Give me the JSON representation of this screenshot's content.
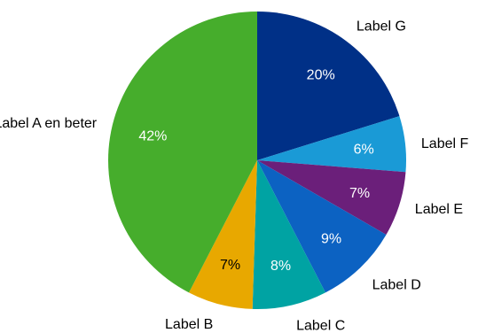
{
  "chart_data": {
    "type": "pie",
    "title": "",
    "legend": "none",
    "grid": false,
    "slices": [
      {
        "label": "Label G",
        "value": 20,
        "display": "20%",
        "color": "#003087",
        "text_color": "#ffffff"
      },
      {
        "label": "Label F",
        "value": 6,
        "display": "6%",
        "color": "#1a9ad6",
        "text_color": "#ffffff"
      },
      {
        "label": "Label E",
        "value": 7,
        "display": "7%",
        "color": "#6b1f7a",
        "text_color": "#ffffff"
      },
      {
        "label": "Label D",
        "value": 9,
        "display": "9%",
        "color": "#0c62c2",
        "text_color": "#ffffff"
      },
      {
        "label": "Label C",
        "value": 8,
        "display": "8%",
        "color": "#00a3a3",
        "text_color": "#ffffff"
      },
      {
        "label": "Label B",
        "value": 7,
        "display": "7%",
        "color": "#e8a800",
        "text_color": "#000000"
      },
      {
        "label": "Label A en beter",
        "value": 42,
        "display": "42%",
        "color": "#46ad2c",
        "text_color": "#ffffff"
      }
    ]
  }
}
